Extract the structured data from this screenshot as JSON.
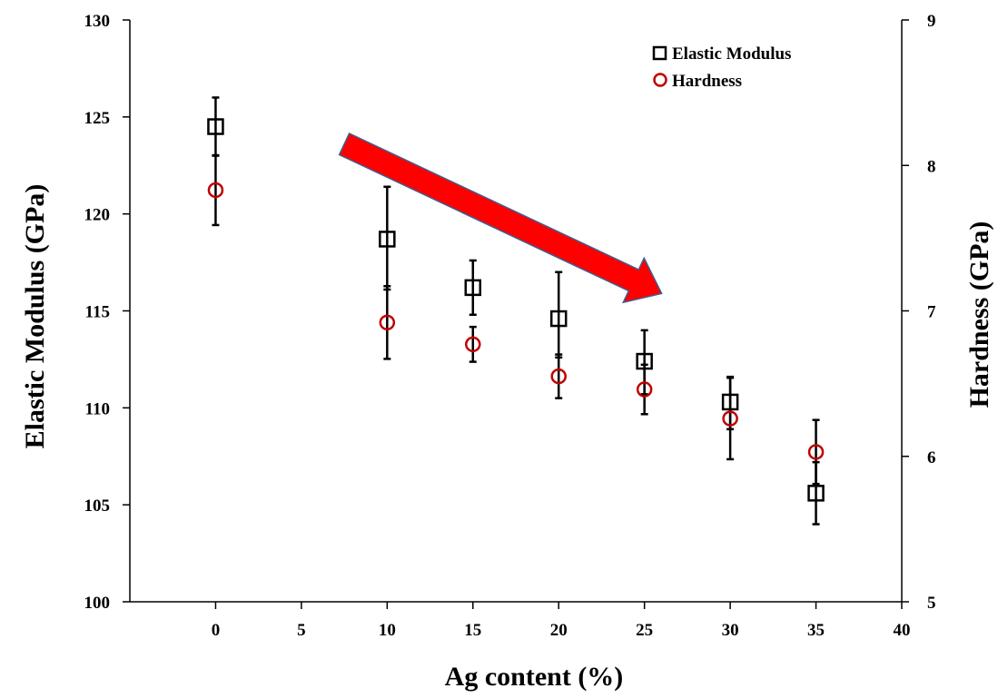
{
  "chart_data": {
    "type": "scatter",
    "title": "",
    "xlabel": "Ag content (%)",
    "ylabel": "Elastic Modulus (GPa)",
    "y2label": "Hardness (GPa)",
    "xlim": [
      -5,
      40
    ],
    "ylim": [
      100,
      130
    ],
    "y2lim": [
      5,
      9
    ],
    "xticks": [
      0,
      5,
      10,
      15,
      20,
      25,
      30,
      35,
      40
    ],
    "yticks": [
      100,
      105,
      110,
      115,
      120,
      125,
      130
    ],
    "y2ticks": [
      5,
      6,
      7,
      8,
      9
    ],
    "grid": false,
    "legend_position": "top-right",
    "series": [
      {
        "name": "Elastic Modulus",
        "axis": "left",
        "marker": "square",
        "color": "#000000",
        "points": [
          {
            "x": 0,
            "y": 124.5,
            "err_low": 1.5,
            "err_high": 1.5
          },
          {
            "x": 10,
            "y": 118.7,
            "err_low": 2.6,
            "err_high": 2.7
          },
          {
            "x": 15,
            "y": 116.2,
            "err_low": 1.4,
            "err_high": 1.4
          },
          {
            "x": 20,
            "y": 114.6,
            "err_low": 2.0,
            "err_high": 2.4
          },
          {
            "x": 25,
            "y": 112.4,
            "err_low": 1.7,
            "err_high": 1.6
          },
          {
            "x": 30,
            "y": 110.3,
            "err_low": 1.4,
            "err_high": 1.3
          },
          {
            "x": 35,
            "y": 105.6,
            "err_low": 1.6,
            "err_high": 1.6
          }
        ]
      },
      {
        "name": "Hardness",
        "axis": "right",
        "marker": "circle",
        "color": "#c00000",
        "points": [
          {
            "x": 0,
            "y": 7.83,
            "err_low": 0.24,
            "err_high": 0.24
          },
          {
            "x": 10,
            "y": 6.92,
            "err_low": 0.25,
            "err_high": 0.25
          },
          {
            "x": 15,
            "y": 6.77,
            "err_low": 0.12,
            "err_high": 0.12
          },
          {
            "x": 20,
            "y": 6.55,
            "err_low": 0.15,
            "err_high": 0.15
          },
          {
            "x": 25,
            "y": 6.46,
            "err_low": 0.17,
            "err_high": 0.17
          },
          {
            "x": 30,
            "y": 6.26,
            "err_low": 0.28,
            "err_high": 0.28
          },
          {
            "x": 35,
            "y": 6.03,
            "err_low": 0.22,
            "err_high": 0.22
          }
        ]
      }
    ],
    "annotations": [
      {
        "type": "arrow",
        "color": "#ff0000",
        "from": {
          "x": 7.5,
          "y": 123.6
        },
        "to": {
          "x": 26,
          "y": 115.9
        }
      }
    ]
  }
}
